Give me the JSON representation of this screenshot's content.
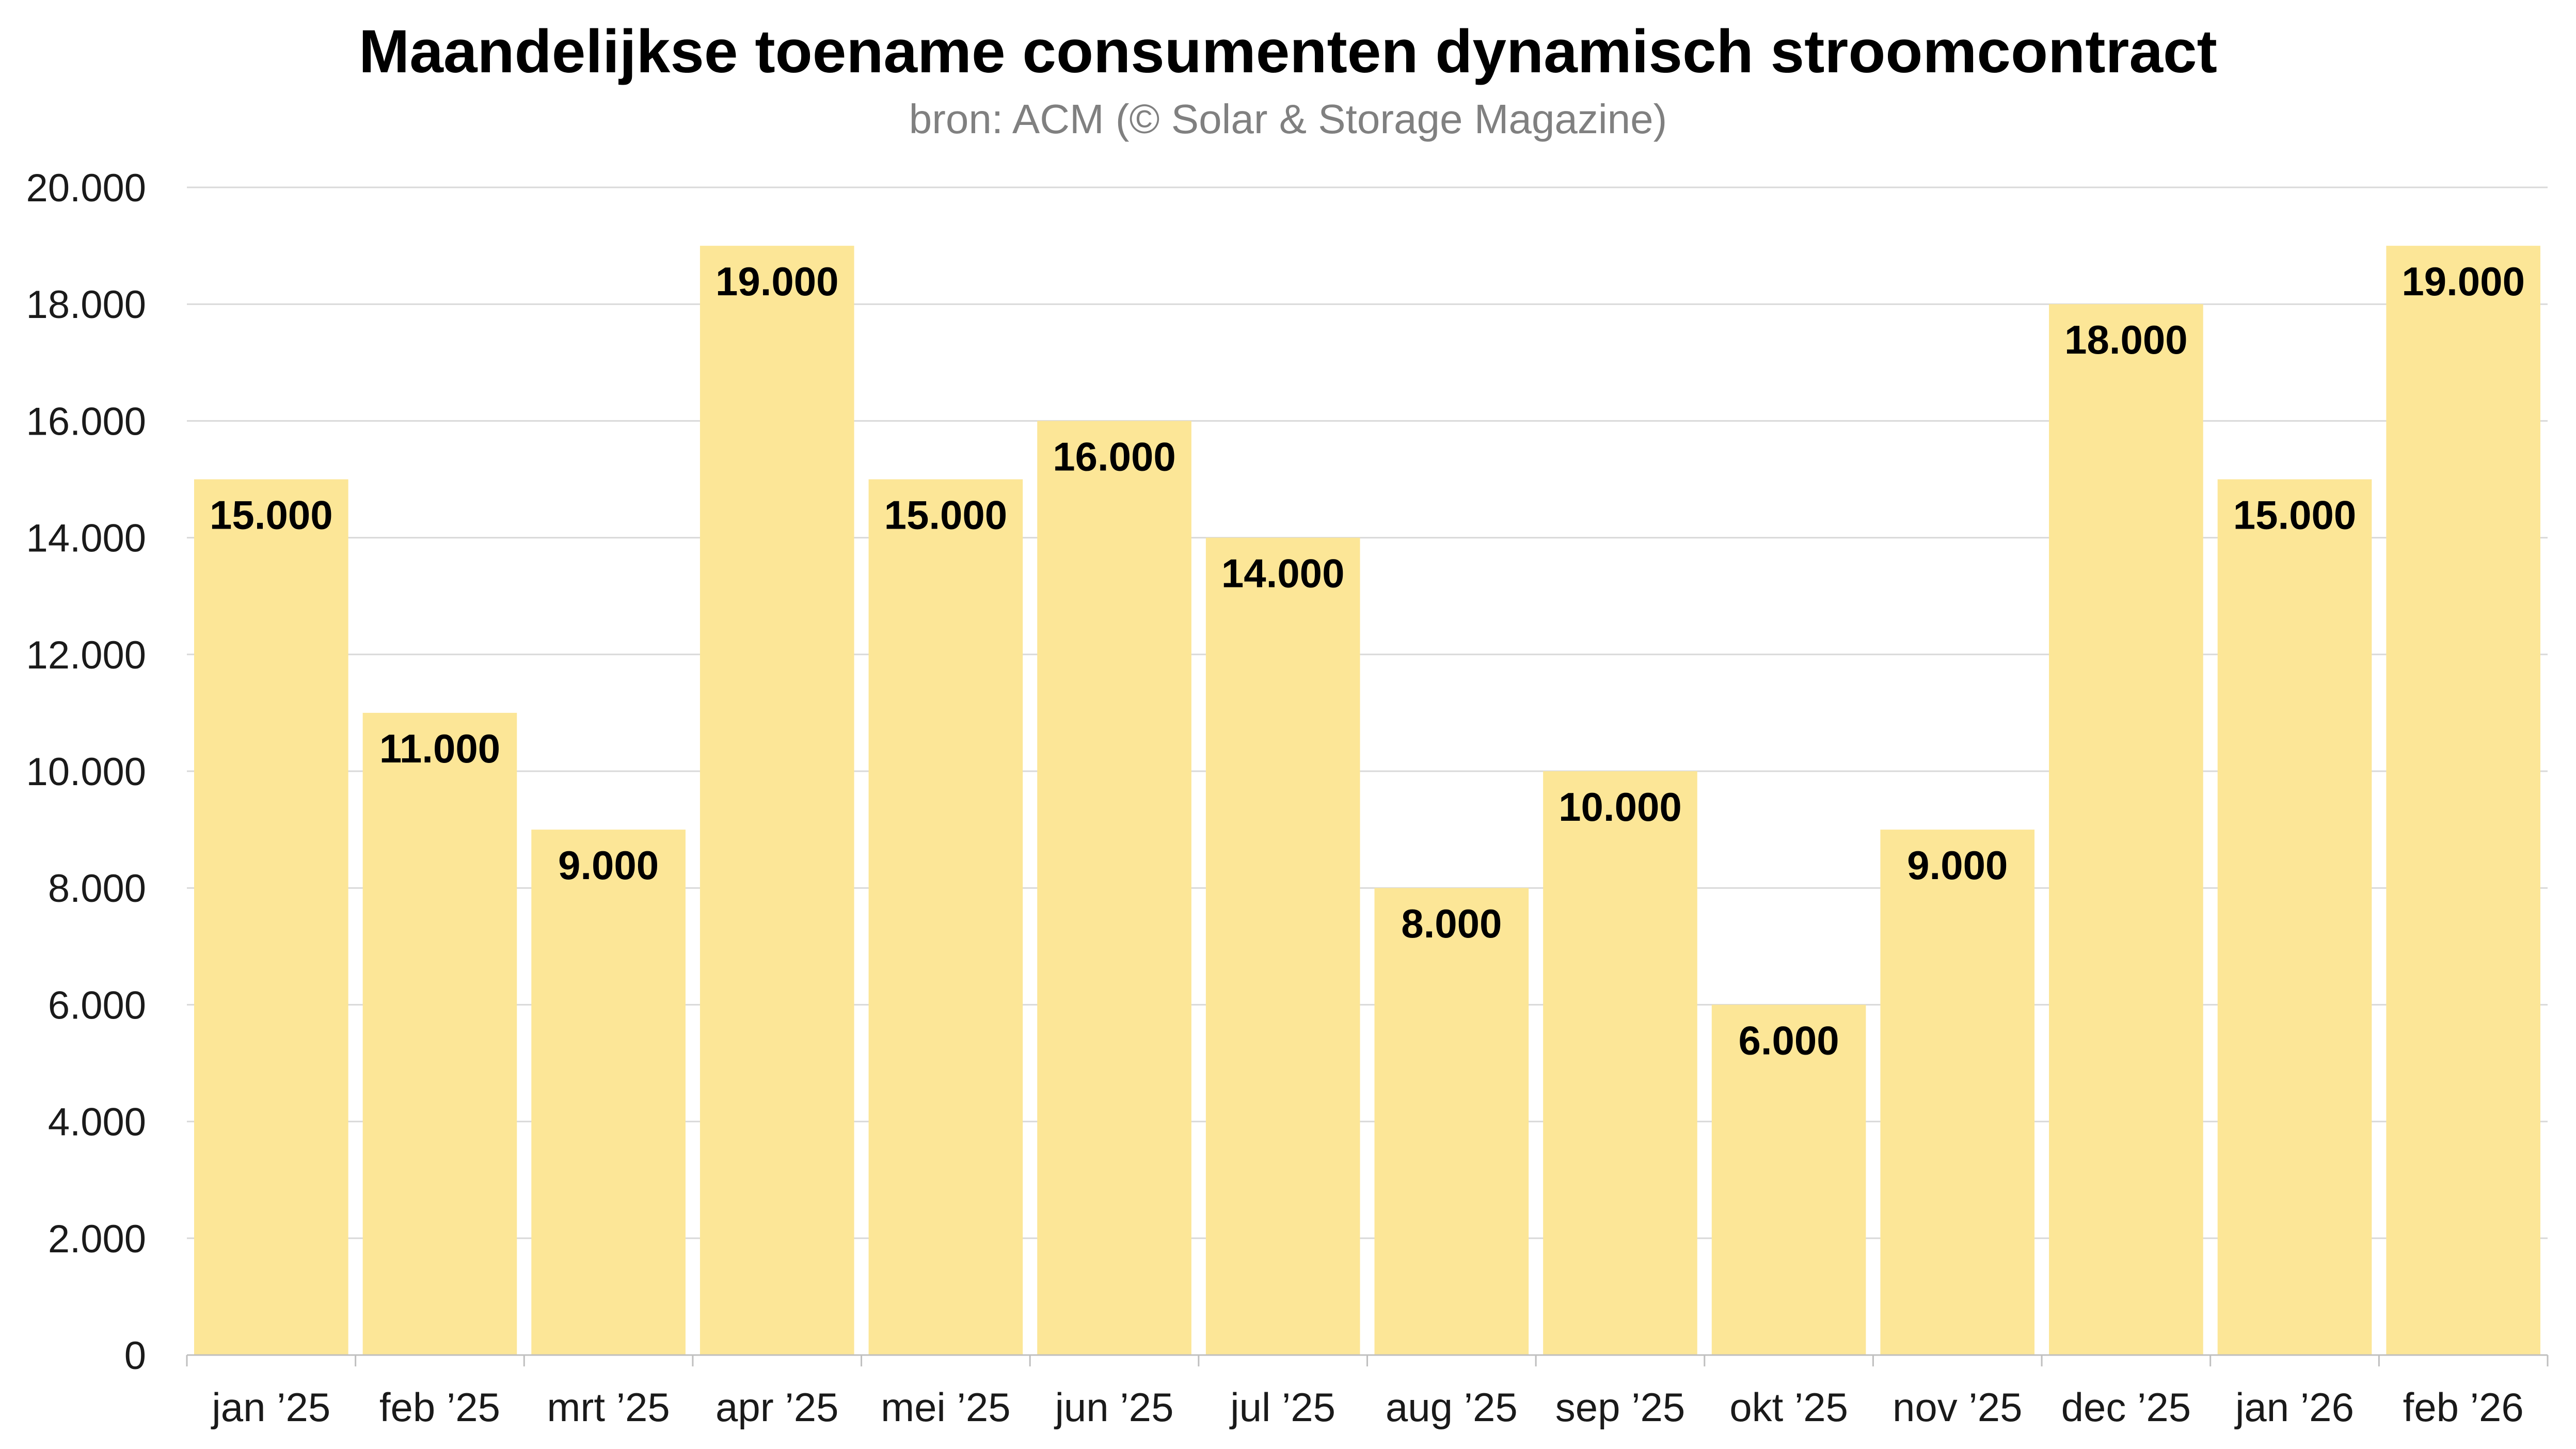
{
  "chart_data": {
    "type": "bar",
    "title": "Maandelijkse toename consumenten dynamisch stroomcontract",
    "subtitle": "bron: ACM (© Solar & Storage Magazine)",
    "xlabel": "",
    "ylabel": "",
    "categories": [
      "jan ’25",
      "feb ’25",
      "mrt ’25",
      "apr ’25",
      "mei ’25",
      "jun ’25",
      "jul ’25",
      "aug ’25",
      "sep ’25",
      "okt ’25",
      "nov ’25",
      "dec ’25",
      "jan ’26",
      "feb ’26"
    ],
    "values": [
      15000,
      11000,
      9000,
      19000,
      15000,
      16000,
      14000,
      8000,
      10000,
      6000,
      9000,
      18000,
      15000,
      19000
    ],
    "data_labels": [
      "15.000",
      "11.000",
      "9.000",
      "19.000",
      "15.000",
      "16.000",
      "14.000",
      "8.000",
      "10.000",
      "6.000",
      "9.000",
      "18.000",
      "15.000",
      "19.000"
    ],
    "ylim": [
      0,
      20000
    ],
    "yticks": [
      0,
      2000,
      4000,
      6000,
      8000,
      10000,
      12000,
      14000,
      16000,
      18000,
      20000
    ],
    "ytick_labels": [
      "0",
      "2.000",
      "4.000",
      "6.000",
      "8.000",
      "10.000",
      "12.000",
      "14.000",
      "16.000",
      "18.000",
      "20.000"
    ],
    "grid": true,
    "legend": "none",
    "colors": {
      "bar": "#fce697",
      "grid": "#d9d9d9",
      "axis": "#bfbfbf",
      "title": "#000000",
      "subtitle": "#808080",
      "tick": "#1a1a1a",
      "label": "#000000"
    }
  }
}
